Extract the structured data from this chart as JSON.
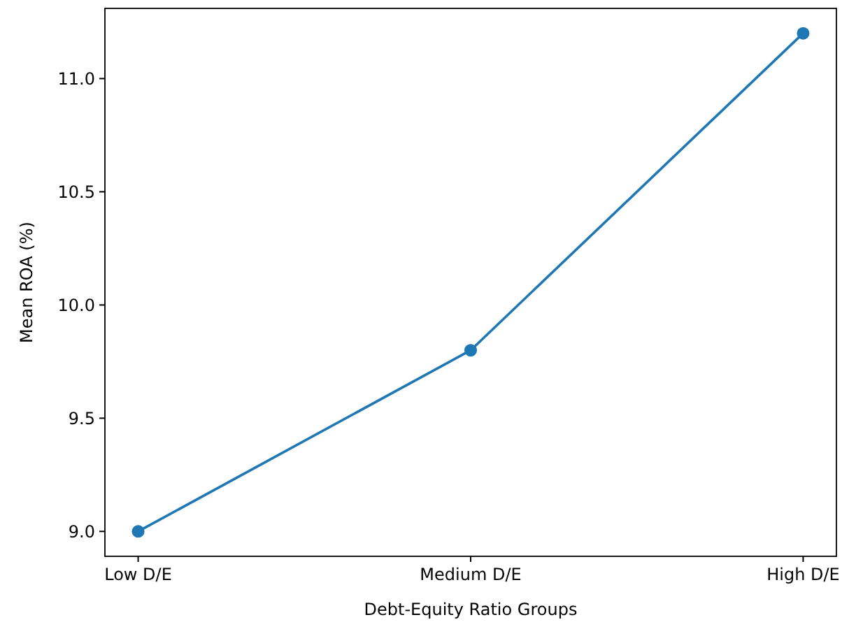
{
  "chart_data": {
    "type": "line",
    "xlabel": "Debt-Equity Ratio Groups",
    "ylabel": "Mean ROA (%)",
    "categories": [
      "Low D/E",
      "Medium D/E",
      "High D/E"
    ],
    "series": [
      {
        "color": "#1f77b4",
        "values": [
          9.0,
          9.8,
          11.2
        ]
      }
    ],
    "ylim": [
      8.89,
      11.31
    ],
    "yticks": [
      {
        "value": 9,
        "label": "9.0"
      },
      {
        "value": 9.5,
        "label": "9.5"
      },
      {
        "value": 10,
        "label": "10.0"
      },
      {
        "value": 10.5,
        "label": "10.5"
      },
      {
        "value": 11,
        "label": "11.0"
      }
    ],
    "marker": "circle",
    "line_style": "solid",
    "grid": false
  }
}
